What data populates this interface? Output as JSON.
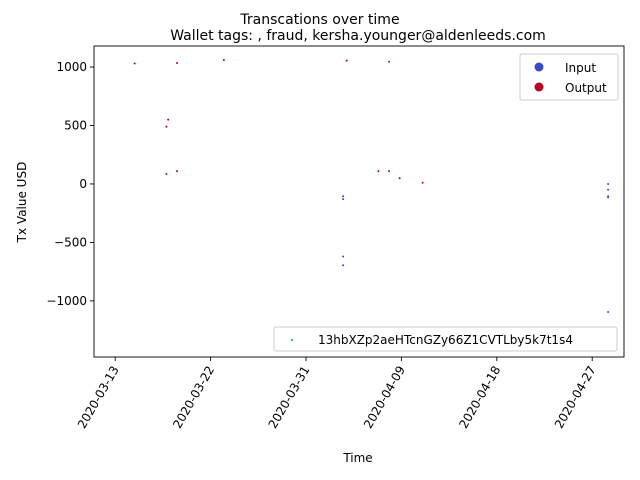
{
  "chart_data": {
    "type": "scatter",
    "title": "Transcations over time",
    "subtitle": "Wallet tags: , fraud, kersha.younger@aldenleeds.com",
    "xlabel": "Time",
    "ylabel": "Tx Value USD",
    "xlim": [
      "2020-03-11",
      "2020-04-30"
    ],
    "ylim": [
      -1480,
      1180
    ],
    "x_ticks": [
      "2020-03-13",
      "2020-03-22",
      "2020-03-31",
      "2020-04-09",
      "2020-04-18",
      "2020-04-27"
    ],
    "y_ticks": [
      -1000,
      -500,
      0,
      500,
      1000
    ],
    "y_tick_labels": [
      "−1000",
      "−500",
      "0",
      "500",
      "1000"
    ],
    "legend_position": "top-right",
    "legend_entries": [
      {
        "label": "Input",
        "color": "#3b4cc0"
      },
      {
        "label": "Output",
        "color": "#b40426"
      }
    ],
    "address_legend": {
      "label": "13hbXZp2aeHTcnGZy66Z1CVTLby5k7t1s4",
      "position": "bottom-right",
      "color": "#2a8a8a"
    },
    "series": [
      {
        "name": "Input",
        "color": "#3b4cc0",
        "points": [
          {
            "x": "2020-04-03T12:00",
            "y": -105
          },
          {
            "x": "2020-04-03T12:00",
            "y": -130
          },
          {
            "x": "2020-04-03T12:00",
            "y": -620
          },
          {
            "x": "2020-04-03T12:00",
            "y": -695
          },
          {
            "x": "2020-04-28T12:00",
            "y": 0
          },
          {
            "x": "2020-04-28T12:00",
            "y": -50
          },
          {
            "x": "2020-04-28T12:00",
            "y": -105
          },
          {
            "x": "2020-04-28T12:00",
            "y": -115
          },
          {
            "x": "2020-04-28T12:00",
            "y": -1095
          }
        ]
      },
      {
        "name": "Output",
        "color": "#b40426",
        "points": [
          {
            "x": "2020-03-14T20:00",
            "y": 1030
          },
          {
            "x": "2020-03-17T20:00",
            "y": 490
          },
          {
            "x": "2020-03-18T00:00",
            "y": 550
          },
          {
            "x": "2020-03-17T20:00",
            "y": 85
          },
          {
            "x": "2020-03-18T20:00",
            "y": 1035
          },
          {
            "x": "2020-03-18T20:00",
            "y": 110
          },
          {
            "x": "2020-03-23T06:00",
            "y": 1060
          },
          {
            "x": "2020-04-03T20:00",
            "y": 1055
          },
          {
            "x": "2020-04-06T20:00",
            "y": 110
          },
          {
            "x": "2020-04-07T20:00",
            "y": 110
          },
          {
            "x": "2020-04-07T20:00",
            "y": 1045
          },
          {
            "x": "2020-04-08T20:00",
            "y": 50
          },
          {
            "x": "2020-04-11T00:00",
            "y": 10
          }
        ]
      }
    ]
  }
}
